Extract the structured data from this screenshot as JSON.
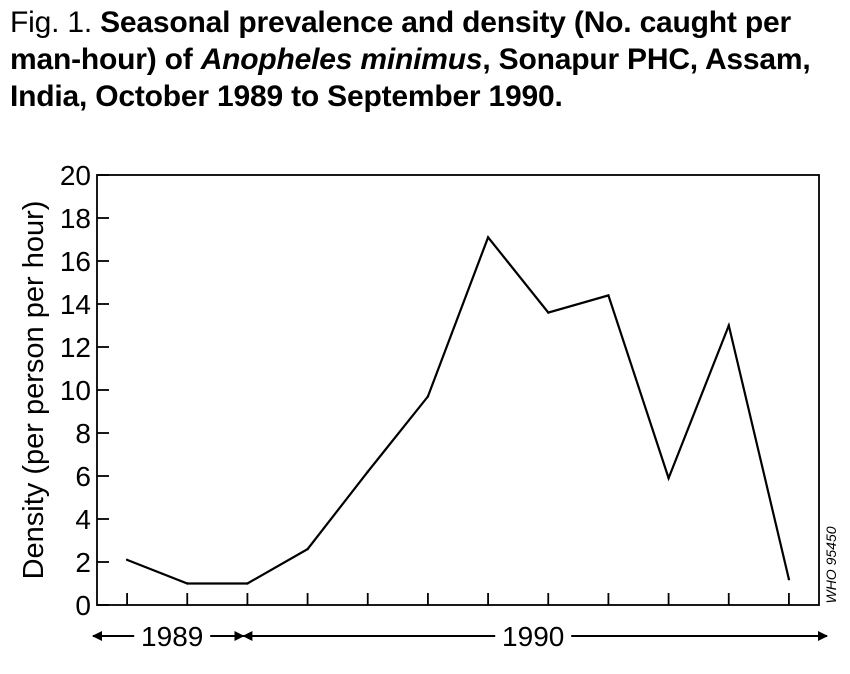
{
  "caption": {
    "lead": "Fig. 1.",
    "title_part1": "Seasonal prevalence and density (No. caught per man-hour) of",
    "title_species": "Anopheles minimus",
    "title_part2": ", Sonapur PHC, Assam, India, October 1989 to September 1990."
  },
  "chart_data": {
    "type": "line",
    "title": "Seasonal prevalence and density (No. caught per man-hour) of Anopheles minimus, Sonapur PHC, Assam, India, October 1989 to September 1990.",
    "xlabel": "",
    "ylabel": "Density (per person per hour)",
    "ylim": [
      0,
      20
    ],
    "yticks": [
      0,
      2,
      4,
      6,
      8,
      10,
      12,
      14,
      16,
      18,
      20
    ],
    "x": [
      1,
      2,
      3,
      4,
      5,
      6,
      7,
      8,
      9,
      10,
      11,
      12
    ],
    "xlim": [
      0.5,
      12.5
    ],
    "series": [
      {
        "values": [
          2.1,
          1.0,
          1.0,
          2.6,
          6.2,
          9.7,
          17.1,
          13.6,
          14.4,
          5.9,
          13.0,
          1.2
        ]
      }
    ],
    "year_labels": [
      {
        "label": "1989",
        "from": 0.5,
        "to": 3.0
      },
      {
        "label": "1990",
        "from": 3.0,
        "to": 12.5
      }
    ],
    "grid": false,
    "legend": "none"
  },
  "watermark": "WHO 95450"
}
